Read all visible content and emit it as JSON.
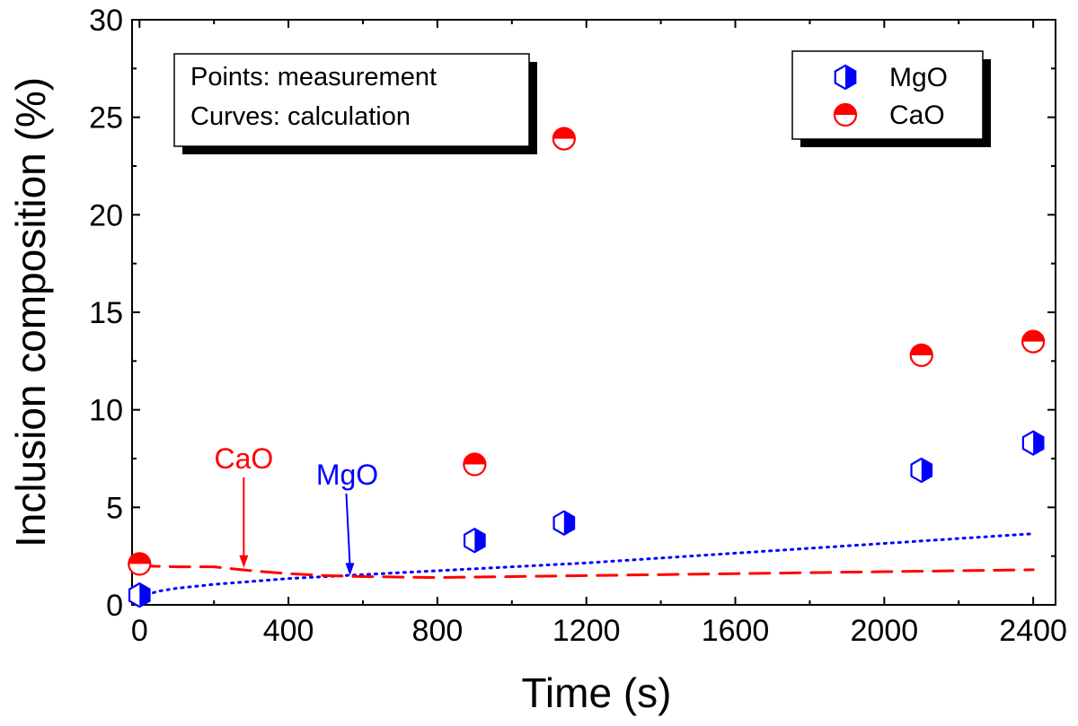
{
  "chart_data": {
    "type": "scatter",
    "xlabel": "Time (s)",
    "ylabel": "Inclusion composition (%)",
    "xlim": [
      -20,
      2460
    ],
    "ylim": [
      0,
      30
    ],
    "xticks": [
      0,
      400,
      800,
      1200,
      1600,
      2000,
      2400
    ],
    "yticks": [
      0,
      5,
      10,
      15,
      20,
      25,
      30
    ],
    "grid": false,
    "note_lines": [
      "Points: measurement",
      "Curves: calculation"
    ],
    "legend": {
      "position": "top-right",
      "entries": [
        {
          "label": "MgO",
          "marker": "half-filled-hexagon",
          "color": "#0000ff"
        },
        {
          "label": "CaO",
          "marker": "half-filled-circle",
          "color": "#ff0000"
        }
      ]
    },
    "series": [
      {
        "name": "MgO",
        "kind": "points",
        "color": "#0000ff",
        "x": [
          0,
          900,
          1140,
          2100,
          2400
        ],
        "y": [
          0.5,
          3.3,
          4.2,
          6.9,
          8.3
        ]
      },
      {
        "name": "CaO",
        "kind": "points",
        "color": "#ff0000",
        "x": [
          0,
          900,
          1140,
          2100,
          2400
        ],
        "y": [
          2.1,
          7.2,
          23.9,
          12.8,
          13.5
        ]
      },
      {
        "name": "MgO",
        "kind": "curve",
        "style": "dotted",
        "color": "#0000ff",
        "x": [
          0,
          50,
          100,
          200,
          300,
          400,
          500,
          600,
          800,
          1000,
          1200,
          1400,
          1600,
          1800,
          2000,
          2200,
          2400
        ],
        "y": [
          0.4,
          0.7,
          0.85,
          1.05,
          1.2,
          1.35,
          1.45,
          1.55,
          1.75,
          1.95,
          2.15,
          2.4,
          2.65,
          2.9,
          3.15,
          3.4,
          3.65
        ]
      },
      {
        "name": "CaO",
        "kind": "curve",
        "style": "dashed",
        "color": "#ff0000",
        "x": [
          0,
          100,
          200,
          300,
          400,
          500,
          600,
          800,
          1000,
          1200,
          1400,
          1600,
          1800,
          2000,
          2200,
          2400
        ],
        "y": [
          2.0,
          1.95,
          1.95,
          1.75,
          1.6,
          1.5,
          1.45,
          1.4,
          1.45,
          1.5,
          1.55,
          1.6,
          1.65,
          1.7,
          1.75,
          1.8
        ]
      }
    ],
    "annotations": [
      {
        "text": "CaO",
        "color": "#ff0000",
        "x": 280,
        "y": 1.9
      },
      {
        "text": "MgO",
        "color": "#0000ff",
        "x": 565,
        "y": 1.5
      }
    ]
  }
}
